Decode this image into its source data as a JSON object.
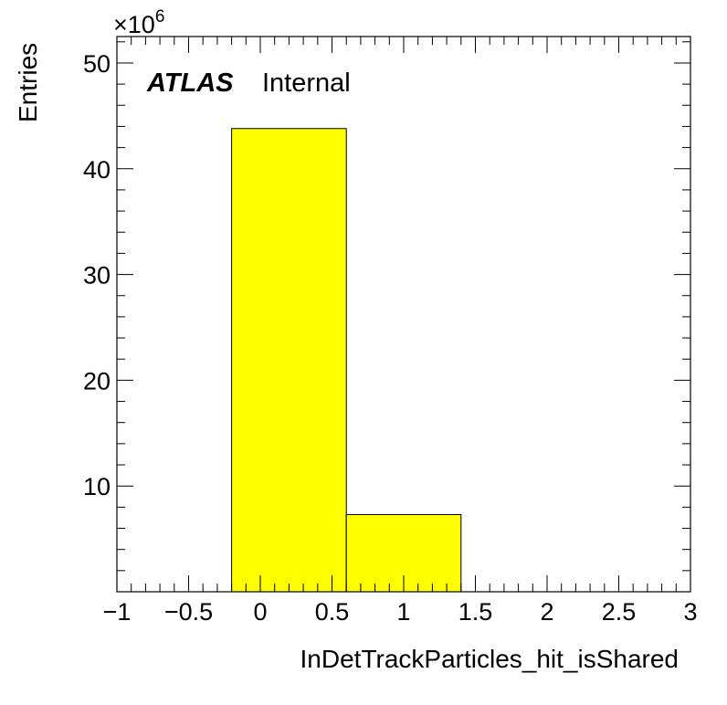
{
  "chart_data": {
    "type": "bar",
    "bins": [
      {
        "low": -0.2,
        "high": 0.6,
        "value": 43.8
      },
      {
        "low": 0.6,
        "high": 1.4,
        "value": 7.3
      }
    ],
    "xlabel": "InDetTrackParticles_hit_isShared",
    "ylabel": "Entries",
    "xlim": [
      -1,
      3
    ],
    "ylim": [
      0,
      52.5
    ],
    "x_ticks": [
      "−1",
      "−0.5",
      "0",
      "0.5",
      "1",
      "1.5",
      "2",
      "2.5",
      "3"
    ],
    "y_ticks": [
      "10",
      "20",
      "30",
      "40",
      "50"
    ],
    "y_multiplier_base": "×10",
    "y_multiplier_exponent": "6",
    "experiment_label": "ATLAS",
    "status_label": "Internal",
    "fill_color": "#ffff00",
    "edge_color": "#000000",
    "grid": false,
    "legend": "none"
  }
}
